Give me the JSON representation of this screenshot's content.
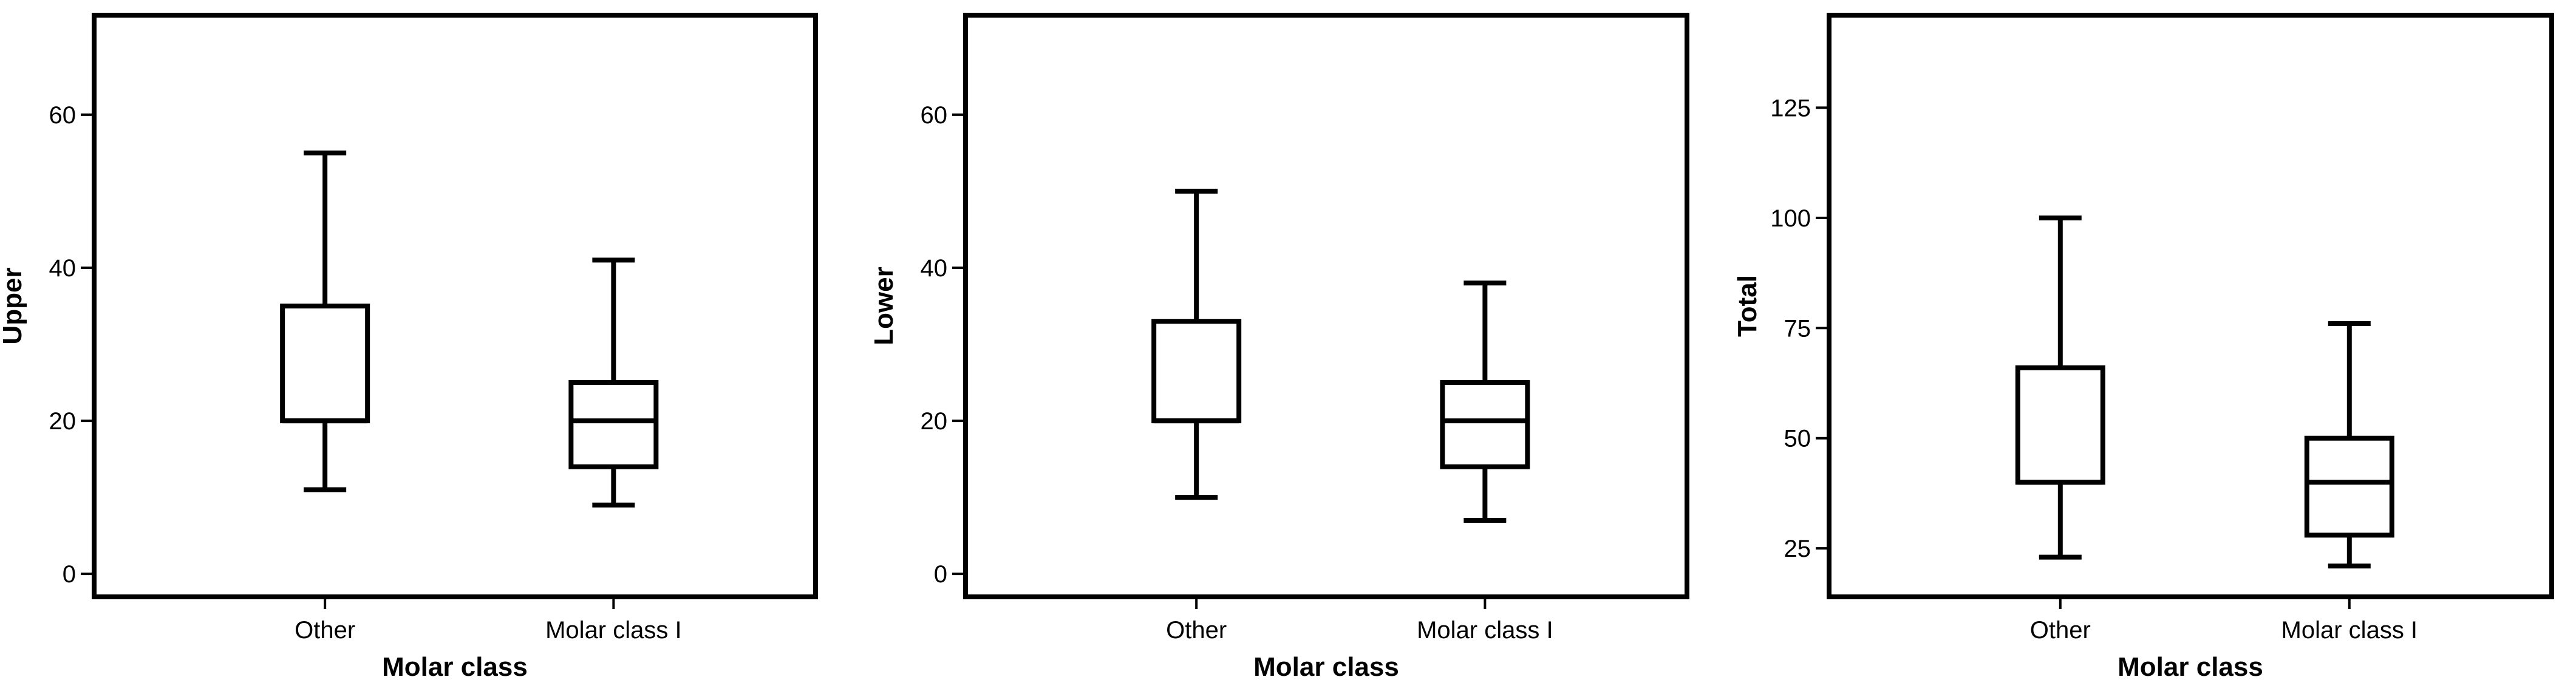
{
  "chart_data": [
    {
      "type": "boxplot",
      "title": "",
      "xlabel": "Molar class",
      "ylabel": "Upper",
      "categories": [
        "Other",
        "Molar class I"
      ],
      "ylim": [
        -3,
        73
      ],
      "yticks": [
        0,
        20,
        40,
        60
      ],
      "boxes": [
        {
          "category": "Other",
          "min": 11,
          "q1": 20,
          "median": 20,
          "q3": 35,
          "max": 55
        },
        {
          "category": "Molar class I",
          "min": 9,
          "q1": 14,
          "median": 20,
          "q3": 25,
          "max": 41
        }
      ],
      "grid": false
    },
    {
      "type": "boxplot",
      "title": "",
      "xlabel": "Molar class",
      "ylabel": "Lower",
      "categories": [
        "Other",
        "Molar class I"
      ],
      "ylim": [
        -3,
        73
      ],
      "yticks": [
        0,
        20,
        40,
        60
      ],
      "boxes": [
        {
          "category": "Other",
          "min": 10,
          "q1": 20,
          "median": 20,
          "q3": 33,
          "max": 50
        },
        {
          "category": "Molar class I",
          "min": 7,
          "q1": 14,
          "median": 20,
          "q3": 25,
          "max": 38
        }
      ],
      "grid": false
    },
    {
      "type": "boxplot",
      "title": "",
      "xlabel": "Molar class",
      "ylabel": "Total",
      "categories": [
        "Other",
        "Molar class I"
      ],
      "ylim": [
        14,
        146
      ],
      "yticks": [
        25,
        50,
        75,
        100,
        125
      ],
      "boxes": [
        {
          "category": "Other",
          "min": 23,
          "q1": 40,
          "median": 40,
          "q3": 66,
          "max": 100
        },
        {
          "category": "Molar class I",
          "min": 21,
          "q1": 28,
          "median": 40,
          "q3": 50,
          "max": 76
        }
      ],
      "grid": false
    }
  ]
}
